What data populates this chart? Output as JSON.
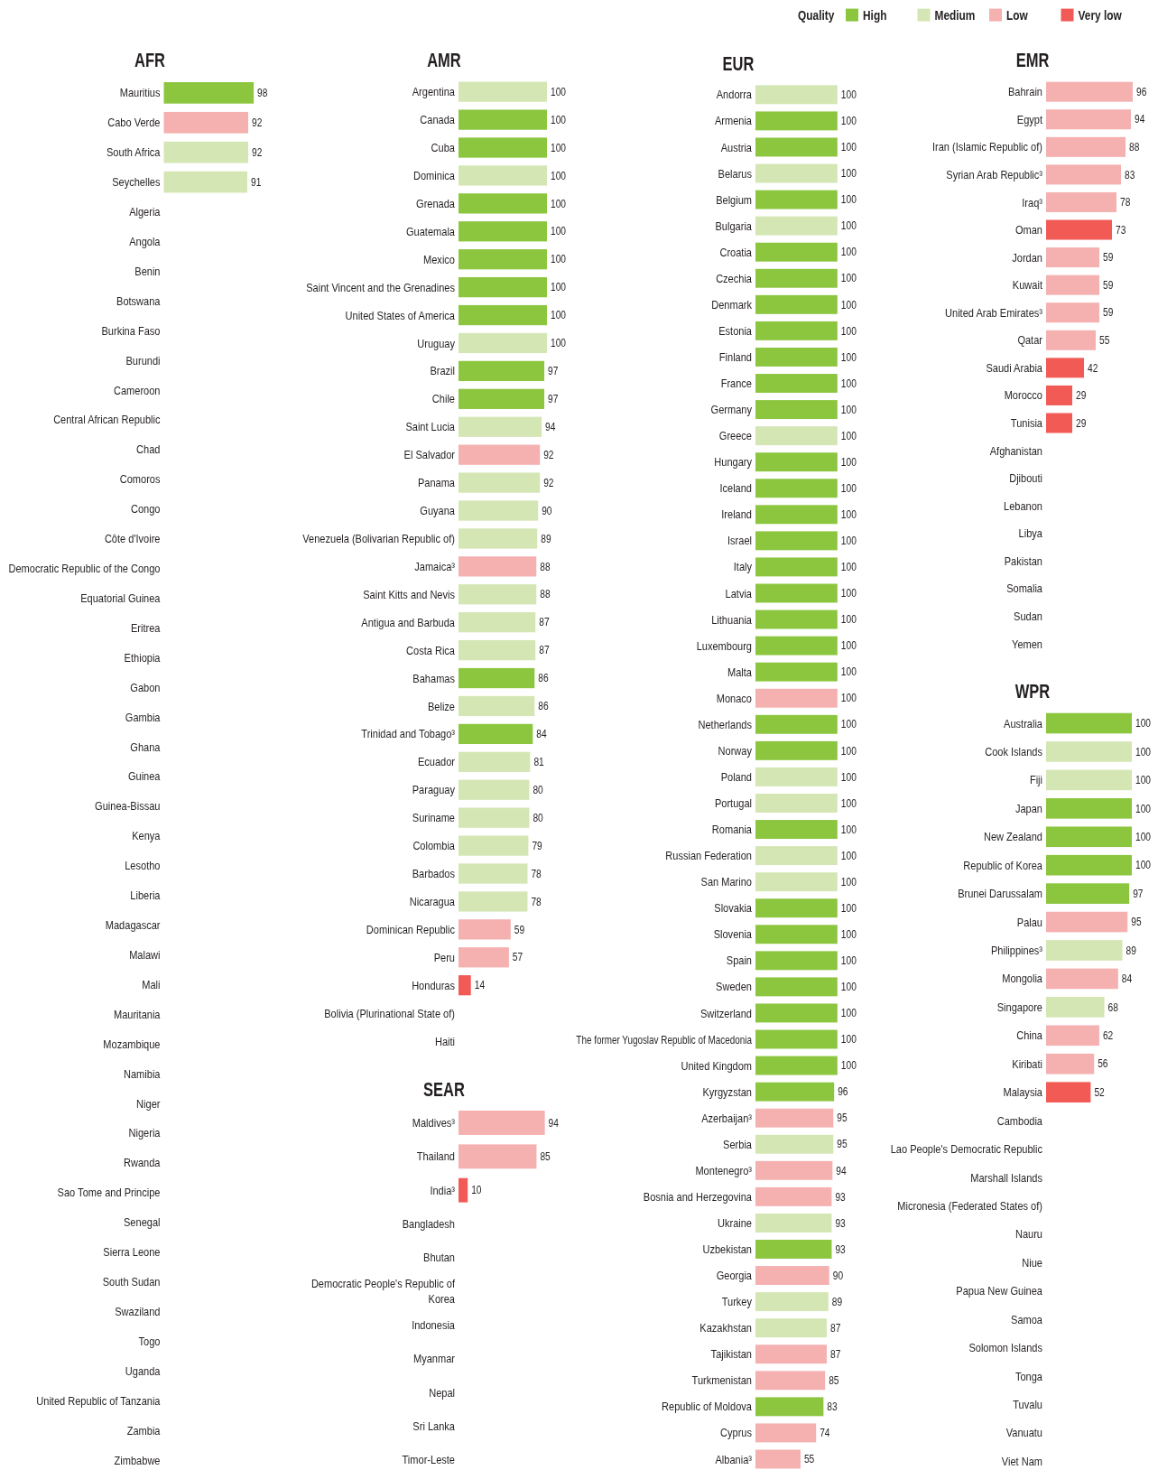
{
  "chart_data": [
    {
      "type": "bar",
      "title": "AFR",
      "orientation": "horizontal",
      "stacked": true,
      "data_labels": true,
      "categories": [
        "Mauritius",
        "Cabo Verde",
        "South Africa",
        "Seychelles",
        "Algeria",
        "Angola",
        "Benin",
        "Botswana",
        "Burkina Faso",
        "Burundi",
        "Cameroon",
        "Central African Republic",
        "Chad",
        "Comoros",
        "Congo",
        "Côte d'Ivoire",
        "Democratic Republic of the Congo",
        "Equatorial Guinea",
        "Eritrea",
        "Ethiopia",
        "Gabon",
        "Gambia",
        "Ghana",
        "Guinea",
        "Guinea-Bissau",
        "Kenya",
        "Lesotho",
        "Liberia",
        "Madagascar",
        "Malawi",
        "Mali",
        "Mauritania",
        "Mozambique",
        "Namibia",
        "Niger",
        "Nigeria",
        "Rwanda",
        "Sao Tome and Principe",
        "Senegal",
        "Sierra Leone",
        "South Sudan",
        "Swaziland",
        "Togo",
        "Uganda",
        "United Republic of Tanzania",
        "Zambia",
        "Zimbabwe"
      ],
      "series": [
        {
          "color": "#8cc63f",
          "values": [
            98,
            null,
            null,
            null,
            null,
            null,
            null,
            null,
            null,
            null,
            null,
            null,
            null,
            null,
            null,
            null,
            null,
            null,
            null,
            null,
            null,
            null,
            null,
            null,
            null,
            null,
            null,
            null,
            null,
            null,
            null,
            null,
            null,
            null,
            null,
            null,
            null,
            null,
            null,
            null,
            null,
            null,
            null,
            null,
            null,
            null,
            null
          ]
        },
        {
          "color": "#d4e6b4",
          "values": [
            null,
            null,
            92,
            91,
            null,
            null,
            null,
            null,
            null,
            null,
            null,
            null,
            null,
            null,
            null,
            null,
            null,
            null,
            null,
            null,
            null,
            null,
            null,
            null,
            null,
            null,
            null,
            null,
            null,
            null,
            null,
            null,
            null,
            null,
            null,
            null,
            null,
            null,
            null,
            null,
            null,
            null,
            null,
            null,
            null,
            null,
            null
          ]
        },
        {
          "color": "#f5b0b0",
          "values": [
            null,
            92,
            null,
            null,
            null,
            null,
            null,
            null,
            null,
            null,
            null,
            null,
            null,
            null,
            null,
            null,
            null,
            null,
            null,
            null,
            null,
            null,
            null,
            null,
            null,
            null,
            null,
            null,
            null,
            null,
            null,
            null,
            null,
            null,
            null,
            null,
            null,
            null,
            null,
            null,
            null,
            null,
            null,
            null,
            null,
            null,
            null
          ]
        }
      ]
    },
    {
      "type": "bar",
      "title": "AMR",
      "orientation": "horizontal",
      "stacked": true,
      "data_labels": true,
      "categories": [
        "Argentina",
        "Canada",
        "Cuba",
        "Dominica",
        "Grenada",
        "Guatemala",
        "Mexico",
        "Saint Vincent and the Grenadines",
        "United States of America",
        "Uruguay",
        "Brazil",
        "Chile",
        "Saint Lucia",
        "El Salvador",
        "Panama",
        "Guyana",
        "Venezuela (Bolivarian Republic of)",
        "Jamaica³",
        "Saint Kitts and Nevis",
        "Antigua and Barbuda",
        "Costa Rica",
        "Bahamas",
        "Belize",
        "Trinidad and Tobago³",
        "Ecuador",
        "Paraguay",
        "Suriname",
        "Colombia",
        "Barbados",
        "Nicaragua",
        "Dominican Republic",
        "Peru",
        "Honduras",
        "Bolivia (Plurinational State of)",
        "Haiti"
      ],
      "series": [
        {
          "color": "#8cc63f",
          "values": [
            null,
            100,
            100,
            null,
            100,
            100,
            100,
            100,
            100,
            null,
            97,
            97,
            null,
            null,
            null,
            null,
            null,
            null,
            null,
            null,
            null,
            86,
            null,
            84,
            null,
            null,
            null,
            null,
            null,
            null,
            null,
            null,
            null,
            null,
            null
          ]
        },
        {
          "color": "#d4e6b4",
          "values": [
            100,
            null,
            null,
            100,
            null,
            null,
            null,
            null,
            null,
            100,
            null,
            null,
            94,
            null,
            92,
            90,
            89,
            null,
            88,
            87,
            87,
            null,
            86,
            null,
            81,
            80,
            80,
            79,
            78,
            78,
            null,
            null,
            null,
            null,
            null
          ]
        },
        {
          "color": "#f5b0b0",
          "values": [
            null,
            null,
            null,
            null,
            null,
            null,
            null,
            null,
            null,
            null,
            null,
            null,
            null,
            92,
            null,
            null,
            null,
            88,
            null,
            null,
            null,
            null,
            null,
            null,
            null,
            null,
            null,
            null,
            null,
            null,
            59,
            57,
            null,
            null,
            null
          ]
        },
        {
          "color": "#f15a55",
          "values": [
            null,
            null,
            null,
            null,
            null,
            null,
            null,
            null,
            null,
            null,
            null,
            null,
            null,
            null,
            null,
            null,
            null,
            null,
            null,
            null,
            null,
            null,
            null,
            null,
            null,
            null,
            null,
            null,
            null,
            null,
            null,
            null,
            14,
            null,
            null
          ]
        }
      ]
    },
    {
      "type": "bar",
      "title": "SEAR",
      "orientation": "horizontal",
      "stacked": true,
      "data_labels": true,
      "categories": [
        "Maldives³",
        "Thailand",
        "India³",
        "Bangladesh",
        "Bhutan",
        "Democratic People's Republic of Korea",
        "Indonesia",
        "Myanmar",
        "Nepal",
        "Sri Lanka",
        "Timor-Leste"
      ],
      "series": [
        {
          "color": "#f5b0b0",
          "values": [
            94,
            85,
            null,
            null,
            null,
            null,
            null,
            null,
            null,
            null,
            null
          ]
        },
        {
          "color": "#f15a55",
          "values": [
            null,
            null,
            10,
            null,
            null,
            null,
            null,
            null,
            null,
            null,
            null
          ]
        }
      ]
    },
    {
      "type": "bar",
      "title": "EUR",
      "orientation": "horizontal",
      "stacked": true,
      "data_labels": true,
      "categories": [
        "Andorra",
        "Armenia",
        "Austria",
        "Belarus",
        "Belgium",
        "Bulgaria",
        "Croatia",
        "Czechia",
        "Denmark",
        "Estonia",
        "Finland",
        "France",
        "Germany",
        "Greece",
        "Hungary",
        "Iceland",
        "Ireland",
        "Israel",
        "Italy",
        "Latvia",
        "Lithuania",
        "Luxembourg",
        "Malta",
        "Monaco",
        "Netherlands",
        "Norway",
        "Poland",
        "Portugal",
        "Romania",
        "Russian Federation",
        "San Marino",
        "Slovakia",
        "Slovenia",
        "Spain",
        "Sweden",
        "Switzerland",
        "The former Yugoslav Republic of Macedonia",
        "United Kingdom",
        "Kyrgyzstan",
        "Azerbaijan³",
        "Serbia",
        "Montenegro³",
        "Bosnia and Herzegovina",
        "Ukraine",
        "Uzbekistan",
        "Georgia",
        "Turkey",
        "Kazakhstan",
        "Tajikistan",
        "Turkmenistan",
        "Republic of Moldova",
        "Cyprus",
        "Albania³"
      ],
      "series": [
        {
          "color": "#8cc63f",
          "values": [
            null,
            100,
            100,
            null,
            100,
            null,
            100,
            100,
            100,
            100,
            100,
            100,
            100,
            null,
            100,
            100,
            100,
            100,
            100,
            100,
            100,
            100,
            100,
            null,
            100,
            100,
            null,
            null,
            100,
            null,
            null,
            100,
            100,
            100,
            100,
            100,
            100,
            100,
            96,
            null,
            null,
            null,
            null,
            null,
            93,
            null,
            null,
            null,
            null,
            null,
            83,
            null,
            null
          ]
        },
        {
          "color": "#d4e6b4",
          "values": [
            100,
            null,
            null,
            100,
            null,
            100,
            null,
            null,
            null,
            null,
            null,
            null,
            null,
            100,
            null,
            null,
            null,
            null,
            null,
            null,
            null,
            null,
            null,
            null,
            null,
            null,
            100,
            100,
            null,
            100,
            100,
            null,
            null,
            null,
            null,
            null,
            null,
            null,
            null,
            null,
            95,
            null,
            null,
            93,
            null,
            null,
            89,
            87,
            null,
            null,
            null,
            null,
            null
          ]
        },
        {
          "color": "#f5b0b0",
          "values": [
            null,
            null,
            null,
            null,
            null,
            null,
            null,
            null,
            null,
            null,
            null,
            null,
            null,
            null,
            null,
            null,
            null,
            null,
            null,
            null,
            null,
            null,
            null,
            100,
            null,
            null,
            null,
            null,
            null,
            null,
            null,
            null,
            null,
            null,
            null,
            null,
            null,
            null,
            null,
            95,
            null,
            94,
            93,
            null,
            null,
            90,
            null,
            null,
            87,
            85,
            null,
            74,
            55
          ]
        }
      ]
    },
    {
      "type": "bar",
      "title": "EMR",
      "orientation": "horizontal",
      "stacked": true,
      "data_labels": true,
      "legend": "top",
      "legend_title": "Quality",
      "categories": [
        "Bahrain",
        "Egypt",
        "Iran (Islamic Republic of)",
        "Syrian Arab Republic³",
        "Iraq³",
        "Oman",
        "Jordan",
        "Kuwait",
        "United Arab Emirates³",
        "Qatar",
        "Saudi Arabia",
        "Morocco",
        "Tunisia",
        "Afghanistan",
        "Djibouti",
        "Lebanon",
        "Libya",
        "Pakistan",
        "Somalia",
        "Sudan",
        "Yemen"
      ],
      "series": [
        {
          "name": "High",
          "color": "#8cc63f",
          "values": [
            null,
            null,
            null,
            null,
            null,
            null,
            null,
            null,
            null,
            null,
            null,
            null,
            null,
            null,
            null,
            null,
            null,
            null,
            null,
            null,
            null
          ]
        },
        {
          "name": "Medium",
          "color": "#d4e6b4",
          "values": [
            null,
            null,
            null,
            null,
            null,
            null,
            null,
            null,
            null,
            null,
            null,
            null,
            null,
            null,
            null,
            null,
            null,
            null,
            null,
            null,
            null
          ]
        },
        {
          "name": "Low",
          "color": "#f5b0b0",
          "values": [
            96,
            94,
            88,
            83,
            78,
            null,
            59,
            59,
            59,
            55,
            null,
            null,
            null,
            null,
            null,
            null,
            null,
            null,
            null,
            null,
            null
          ]
        },
        {
          "name": "Very low",
          "color": "#f15a55",
          "values": [
            null,
            null,
            null,
            null,
            null,
            73,
            null,
            null,
            null,
            null,
            42,
            29,
            29,
            null,
            null,
            null,
            null,
            null,
            null,
            null,
            null
          ]
        }
      ]
    },
    {
      "type": "bar",
      "title": "WPR",
      "orientation": "horizontal",
      "stacked": true,
      "data_labels": true,
      "categories": [
        "Australia",
        "Cook Islands",
        "Fiji",
        "Japan",
        "New Zealand",
        "Republic of Korea",
        "Brunei Darussalam",
        "Palau",
        "Philippines³",
        "Mongolia",
        "Singapore",
        "China",
        "Kiribati",
        "Malaysia",
        "Cambodia",
        "Lao People's Democratic Republic",
        "Marshall Islands",
        "Micronesia (Federated States of)",
        "Nauru",
        "Niue",
        "Papua New Guinea",
        "Samoa",
        "Solomon Islands",
        "Tonga",
        "Tuvalu",
        "Vanuatu",
        "Viet Nam"
      ],
      "series": [
        {
          "color": "#8cc63f",
          "values": [
            100,
            null,
            null,
            100,
            100,
            100,
            97,
            null,
            null,
            null,
            null,
            null,
            null,
            null,
            null,
            null,
            null,
            null,
            null,
            null,
            null,
            null,
            null,
            null,
            null,
            null,
            null
          ]
        },
        {
          "color": "#d4e6b4",
          "values": [
            null,
            100,
            100,
            null,
            null,
            null,
            null,
            null,
            89,
            null,
            68,
            null,
            null,
            null,
            null,
            null,
            null,
            null,
            null,
            null,
            null,
            null,
            null,
            null,
            null,
            null,
            null
          ]
        },
        {
          "color": "#f5b0b0",
          "values": [
            null,
            null,
            null,
            null,
            null,
            null,
            null,
            95,
            null,
            84,
            null,
            62,
            56,
            null,
            null,
            null,
            null,
            null,
            null,
            null,
            null,
            null,
            null,
            null,
            null,
            null,
            null
          ]
        },
        {
          "color": "#f15a55",
          "values": [
            null,
            null,
            null,
            null,
            null,
            null,
            null,
            null,
            null,
            null,
            null,
            null,
            null,
            52,
            null,
            null,
            null,
            null,
            null,
            null,
            null,
            null,
            null,
            null,
            null,
            null,
            null
          ]
        }
      ]
    }
  ]
}
